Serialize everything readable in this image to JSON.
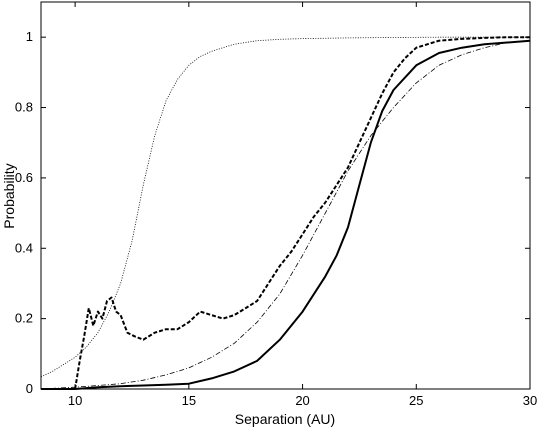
{
  "chart_data": {
    "type": "line",
    "xlabel": "Separation (AU)",
    "ylabel": "Probability",
    "xlim": [
      8.5,
      30
    ],
    "ylim": [
      0,
      1.1
    ],
    "xticks": [
      10,
      15,
      20,
      25,
      30
    ],
    "yticks": [
      0,
      0.2,
      0.4,
      0.6,
      0.8,
      1
    ],
    "xtick_labels": [
      "10",
      "15",
      "20",
      "25",
      "30"
    ],
    "ytick_labels": [
      "0",
      "0.2",
      "0.4",
      "0.6",
      "0.8",
      "1"
    ],
    "grid": false,
    "legend": false,
    "series": [
      {
        "style": "dotted",
        "x": [
          8.5,
          9,
          9.5,
          10,
          10.5,
          11,
          11.5,
          12,
          12.5,
          13,
          13.5,
          14,
          14.5,
          15,
          15.5,
          16,
          17,
          18,
          19,
          20,
          22,
          24,
          26,
          28,
          30
        ],
        "y": [
          0.035,
          0.05,
          0.07,
          0.09,
          0.12,
          0.16,
          0.22,
          0.3,
          0.42,
          0.58,
          0.72,
          0.82,
          0.88,
          0.92,
          0.945,
          0.96,
          0.98,
          0.99,
          0.994,
          0.996,
          0.998,
          0.999,
          1.0,
          1.0,
          1.0
        ]
      },
      {
        "style": "dashed",
        "x": [
          10,
          10.2,
          10.4,
          10.6,
          10.8,
          11,
          11.2,
          11.4,
          11.6,
          11.8,
          12,
          12.3,
          12.6,
          13,
          13.5,
          14,
          14.5,
          15,
          15.5,
          16,
          16.5,
          17,
          17.5,
          18,
          18.5,
          19,
          19.5,
          20,
          20.5,
          21,
          21.5,
          22,
          22.5,
          23,
          23.5,
          24,
          24.5,
          25,
          26,
          27,
          28,
          29,
          30
        ],
        "y": [
          0.0,
          0.08,
          0.15,
          0.23,
          0.18,
          0.22,
          0.2,
          0.25,
          0.26,
          0.22,
          0.21,
          0.16,
          0.15,
          0.14,
          0.16,
          0.17,
          0.17,
          0.19,
          0.22,
          0.21,
          0.2,
          0.21,
          0.23,
          0.25,
          0.3,
          0.35,
          0.39,
          0.44,
          0.49,
          0.53,
          0.58,
          0.63,
          0.7,
          0.77,
          0.84,
          0.9,
          0.94,
          0.97,
          0.99,
          0.995,
          0.998,
          1.0,
          1.0
        ]
      },
      {
        "style": "dashdot",
        "x": [
          8.5,
          10,
          11,
          12,
          13,
          14,
          15,
          16,
          17,
          18,
          19,
          20,
          21,
          22,
          23,
          24,
          25,
          26,
          27,
          28,
          29,
          30
        ],
        "y": [
          0.0,
          0.005,
          0.01,
          0.015,
          0.025,
          0.04,
          0.06,
          0.09,
          0.13,
          0.19,
          0.27,
          0.38,
          0.5,
          0.62,
          0.72,
          0.8,
          0.87,
          0.92,
          0.95,
          0.97,
          0.985,
          0.99
        ]
      },
      {
        "style": "solid",
        "x": [
          8.5,
          10,
          11,
          12,
          13,
          14,
          15,
          16,
          17,
          18,
          19,
          20,
          21,
          21.5,
          22,
          22.5,
          23,
          23.5,
          24,
          25,
          26,
          27,
          28,
          29,
          30
        ],
        "y": [
          0.0,
          0.0,
          0.005,
          0.008,
          0.01,
          0.012,
          0.015,
          0.03,
          0.05,
          0.08,
          0.14,
          0.22,
          0.32,
          0.38,
          0.46,
          0.58,
          0.7,
          0.79,
          0.85,
          0.92,
          0.955,
          0.97,
          0.98,
          0.985,
          0.99
        ]
      }
    ]
  }
}
